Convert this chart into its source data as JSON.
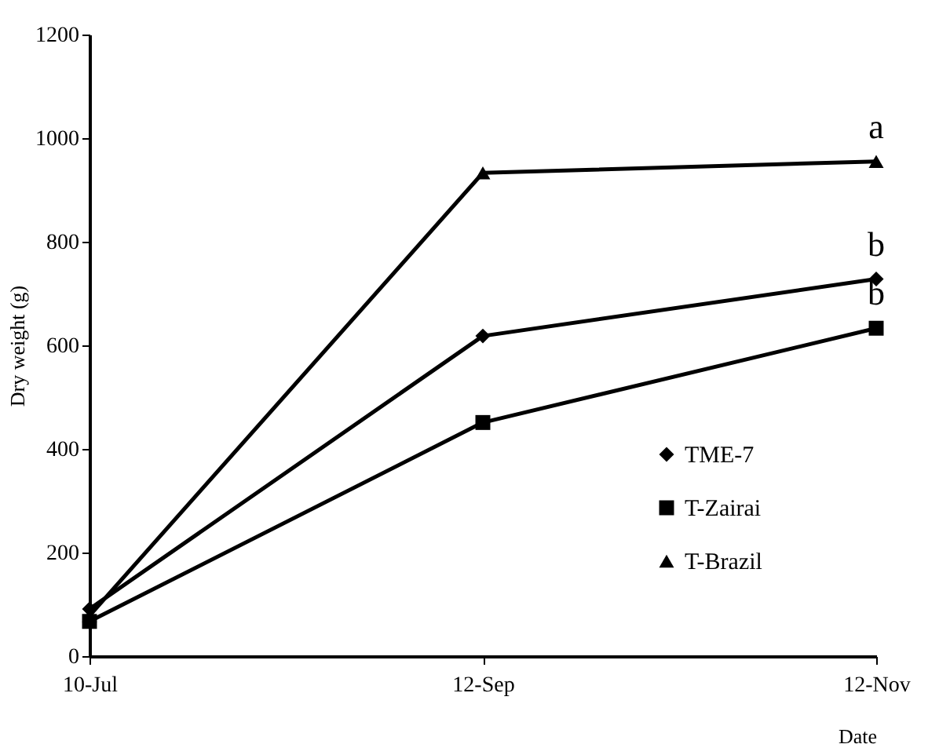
{
  "chart_data": {
    "type": "line",
    "xlabel": "Date",
    "ylabel": "Dry weight  (g)",
    "categories": [
      "10-Jul",
      "12-Sep",
      "12-Nov"
    ],
    "series": [
      {
        "name": "TME-7",
        "color": "#000000",
        "marker": "diamond",
        "values": [
          91,
          618,
          728
        ]
      },
      {
        "name": "T-Zairai",
        "color": "#000000",
        "marker": "square",
        "values": [
          67,
          451,
          633
        ]
      },
      {
        "name": "T-Brazil",
        "color": "#000000",
        "marker": "triangle",
        "values": [
          78,
          933,
          955
        ]
      }
    ],
    "ylim": [
      0,
      1200
    ],
    "yticks": [
      0,
      200,
      400,
      600,
      800,
      1000,
      1200
    ],
    "grid": false,
    "legend": "right",
    "line_style": "solid",
    "annotations": [
      {
        "text": "a",
        "x": "12-Nov",
        "y": 955
      },
      {
        "text": "b",
        "x": "12-Nov",
        "y": 728
      },
      {
        "text": "b",
        "x": "12-Nov",
        "y": 633
      }
    ]
  }
}
